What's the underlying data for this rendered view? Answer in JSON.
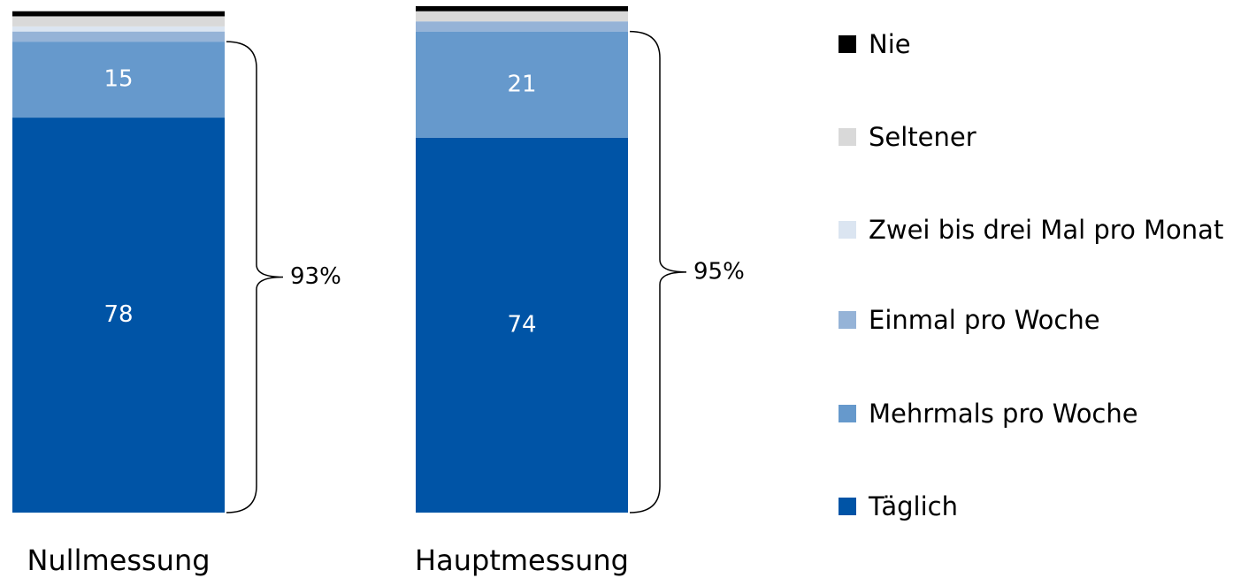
{
  "chart_data": {
    "type": "stacked_bar",
    "categories": [
      "Nullmessung",
      "Hauptmessung"
    ],
    "series": [
      {
        "name": "Täglich",
        "color": "#0054a6",
        "values": [
          78,
          74
        ]
      },
      {
        "name": "Mehrmals pro Woche",
        "color": "#6699cc",
        "values": [
          15,
          21
        ]
      },
      {
        "name": "Einmal pro Woche",
        "color": "#95b3d7",
        "values": [
          2,
          2
        ]
      },
      {
        "name": "Zwei bis drei Mal pro Monat",
        "color": "#dbe5f1",
        "values": [
          1,
          0
        ]
      },
      {
        "name": "Seltener",
        "color": "#d9d9d9",
        "values": [
          2,
          2
        ]
      },
      {
        "name": "Nie",
        "color": "#000000",
        "values": [
          1,
          1
        ]
      }
    ],
    "annotations": [
      "93%",
      "95%"
    ],
    "ylim": [
      0,
      100
    ]
  }
}
